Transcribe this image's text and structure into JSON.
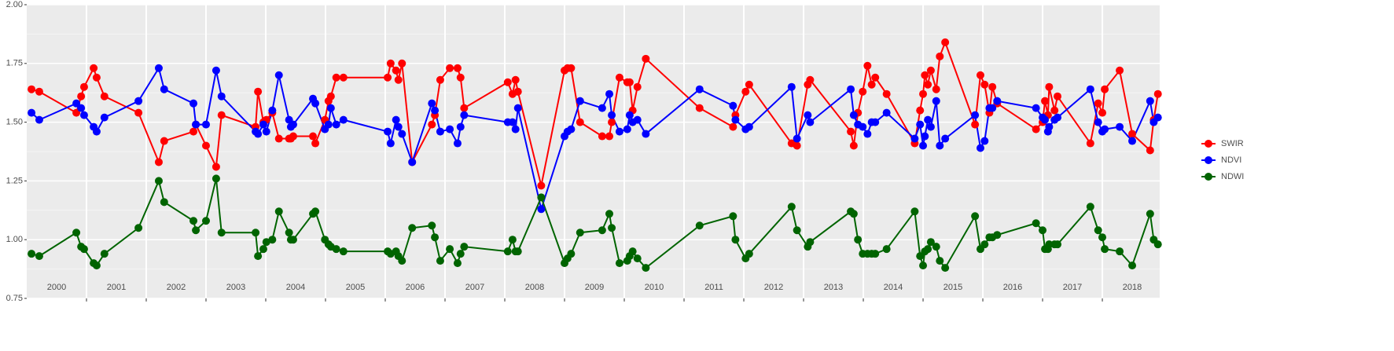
{
  "chart_data": {
    "type": "line",
    "x": [
      2000.08,
      2000.21,
      2000.83,
      2000.91,
      2000.96,
      2001.12,
      2001.17,
      2001.3,
      2001.87,
      2002.21,
      2002.3,
      2002.79,
      2002.83,
      2003.0,
      2003.17,
      2003.26,
      2003.83,
      2003.87,
      2003.96,
      2004.01,
      2004.11,
      2004.22,
      2004.39,
      2004.42,
      2004.46,
      2004.79,
      2004.83,
      2004.99,
      2005.05,
      2005.09,
      2005.18,
      2005.3,
      2006.04,
      2006.09,
      2006.18,
      2006.22,
      2006.28,
      2006.45,
      2006.78,
      2006.83,
      2006.92,
      2007.08,
      2007.21,
      2007.26,
      2007.32,
      2008.05,
      2008.13,
      2008.18,
      2008.22,
      2008.61,
      2009.0,
      2009.05,
      2009.11,
      2009.26,
      2009.63,
      2009.75,
      2009.79,
      2009.92,
      2010.05,
      2010.09,
      2010.14,
      2010.22,
      2010.36,
      2011.26,
      2011.82,
      2011.86,
      2012.03,
      2012.09,
      2012.8,
      2012.89,
      2013.07,
      2013.11,
      2013.79,
      2013.84,
      2013.91,
      2013.99,
      2014.07,
      2014.14,
      2014.2,
      2014.39,
      2014.86,
      2014.95,
      2015.0,
      2015.03,
      2015.08,
      2015.13,
      2015.22,
      2015.28,
      2015.37,
      2015.87,
      2015.96,
      2016.03,
      2016.11,
      2016.16,
      2016.24,
      2016.89,
      2017.0,
      2017.04,
      2017.09,
      2017.11,
      2017.2,
      2017.25,
      2017.8,
      2017.93,
      2018.0,
      2018.04,
      2018.29,
      2018.5,
      2018.8,
      2018.86,
      2018.93
    ],
    "series": [
      {
        "name": "SWIR",
        "color": "#ff0000",
        "values": [
          1.64,
          1.63,
          1.54,
          1.61,
          1.65,
          1.73,
          1.69,
          1.61,
          1.54,
          1.33,
          1.42,
          1.46,
          1.49,
          1.4,
          1.31,
          1.53,
          1.48,
          1.63,
          1.5,
          1.51,
          1.54,
          1.43,
          1.43,
          1.43,
          1.44,
          1.44,
          1.41,
          1.51,
          1.59,
          1.61,
          1.69,
          1.69,
          1.69,
          1.75,
          1.72,
          1.68,
          1.75,
          1.33,
          1.49,
          1.53,
          1.68,
          1.73,
          1.73,
          1.69,
          1.56,
          1.67,
          1.62,
          1.68,
          1.63,
          1.23,
          1.72,
          1.73,
          1.73,
          1.5,
          1.44,
          1.44,
          1.5,
          1.69,
          1.67,
          1.67,
          1.55,
          1.65,
          1.77,
          1.56,
          1.48,
          1.53,
          1.63,
          1.66,
          1.41,
          1.4,
          1.66,
          1.68,
          1.46,
          1.4,
          1.54,
          1.63,
          1.74,
          1.66,
          1.69,
          1.62,
          1.41,
          1.55,
          1.62,
          1.7,
          1.66,
          1.72,
          1.64,
          1.78,
          1.84,
          1.49,
          1.7,
          1.66,
          1.54,
          1.65,
          1.58,
          1.47,
          1.5,
          1.59,
          1.53,
          1.65,
          1.55,
          1.61,
          1.41,
          1.58,
          1.54,
          1.64,
          1.72,
          1.45,
          1.38,
          1.51,
          1.62
        ]
      },
      {
        "name": "NDVI",
        "color": "#0000ff",
        "values": [
          1.54,
          1.51,
          1.58,
          1.56,
          1.53,
          1.48,
          1.46,
          1.52,
          1.59,
          1.73,
          1.64,
          1.58,
          1.49,
          1.49,
          1.72,
          1.61,
          1.46,
          1.45,
          1.49,
          1.46,
          1.55,
          1.7,
          1.51,
          1.48,
          1.49,
          1.6,
          1.58,
          1.47,
          1.49,
          1.56,
          1.49,
          1.51,
          1.46,
          1.41,
          1.51,
          1.48,
          1.45,
          1.33,
          1.58,
          1.55,
          1.46,
          1.47,
          1.41,
          1.48,
          1.53,
          1.5,
          1.5,
          1.47,
          1.56,
          1.13,
          1.44,
          1.46,
          1.47,
          1.59,
          1.56,
          1.62,
          1.53,
          1.46,
          1.47,
          1.53,
          1.5,
          1.51,
          1.45,
          1.64,
          1.57,
          1.51,
          1.47,
          1.48,
          1.65,
          1.43,
          1.53,
          1.5,
          1.64,
          1.53,
          1.49,
          1.48,
          1.45,
          1.5,
          1.5,
          1.54,
          1.43,
          1.49,
          1.4,
          1.44,
          1.51,
          1.48,
          1.59,
          1.4,
          1.43,
          1.53,
          1.39,
          1.42,
          1.56,
          1.56,
          1.59,
          1.56,
          1.52,
          1.51,
          1.46,
          1.48,
          1.51,
          1.52,
          1.64,
          1.5,
          1.46,
          1.47,
          1.48,
          1.42,
          1.59,
          1.5,
          1.52
        ]
      },
      {
        "name": "NDWI",
        "color": "#006400",
        "values": [
          0.94,
          0.93,
          1.03,
          0.97,
          0.96,
          0.9,
          0.89,
          0.94,
          1.05,
          1.25,
          1.16,
          1.08,
          1.04,
          1.08,
          1.26,
          1.03,
          1.03,
          0.93,
          0.96,
          0.99,
          1.0,
          1.12,
          1.03,
          1.0,
          1.0,
          1.11,
          1.12,
          1.0,
          0.98,
          0.97,
          0.96,
          0.95,
          0.95,
          0.94,
          0.95,
          0.93,
          0.91,
          1.05,
          1.06,
          1.01,
          0.91,
          0.96,
          0.9,
          0.94,
          0.97,
          0.95,
          1.0,
          0.95,
          0.95,
          1.18,
          0.9,
          0.92,
          0.94,
          1.03,
          1.04,
          1.11,
          1.05,
          0.9,
          0.91,
          0.93,
          0.95,
          0.92,
          0.88,
          1.06,
          1.1,
          1.0,
          0.92,
          0.94,
          1.14,
          1.04,
          0.97,
          0.99,
          1.12,
          1.11,
          1.0,
          0.94,
          0.94,
          0.94,
          0.94,
          0.96,
          1.12,
          0.93,
          0.89,
          0.95,
          0.96,
          0.99,
          0.97,
          0.91,
          0.88,
          1.1,
          0.96,
          0.98,
          1.01,
          1.01,
          1.02,
          1.07,
          1.04,
          0.96,
          0.96,
          0.98,
          0.98,
          0.98,
          1.14,
          1.04,
          1.01,
          0.96,
          0.95,
          0.89,
          1.11,
          1.0,
          0.98
        ]
      }
    ],
    "xlim": [
      2000,
      2018.96
    ],
    "xticks": [
      {
        "value": 2000,
        "label": "2000"
      },
      {
        "value": 2001,
        "label": "2001"
      },
      {
        "value": 2002,
        "label": "2002"
      },
      {
        "value": 2003,
        "label": "2003"
      },
      {
        "value": 2004,
        "label": "2004"
      },
      {
        "value": 2005,
        "label": "2005"
      },
      {
        "value": 2006,
        "label": "2006"
      },
      {
        "value": 2007,
        "label": "2007"
      },
      {
        "value": 2008,
        "label": "2008"
      },
      {
        "value": 2009,
        "label": "2009"
      },
      {
        "value": 2010,
        "label": "2010"
      },
      {
        "value": 2011,
        "label": "2011"
      },
      {
        "value": 2012,
        "label": "2012"
      },
      {
        "value": 2013,
        "label": "2013"
      },
      {
        "value": 2014,
        "label": "2014"
      },
      {
        "value": 2015,
        "label": "2015"
      },
      {
        "value": 2016,
        "label": "2016"
      },
      {
        "value": 2017,
        "label": "2017"
      },
      {
        "value": 2018,
        "label": "2018"
      }
    ],
    "ylim": [
      0.75,
      2.0
    ],
    "yticks": [
      {
        "value": 0.75,
        "label": "0.75"
      },
      {
        "value": 1.0,
        "label": "1.00"
      },
      {
        "value": 1.25,
        "label": "1.25"
      },
      {
        "value": 1.5,
        "label": "1.50"
      },
      {
        "value": 1.75,
        "label": "1.75"
      },
      {
        "value": 2.0,
        "label": "2.00"
      }
    ],
    "grid": true,
    "legend": "right"
  }
}
